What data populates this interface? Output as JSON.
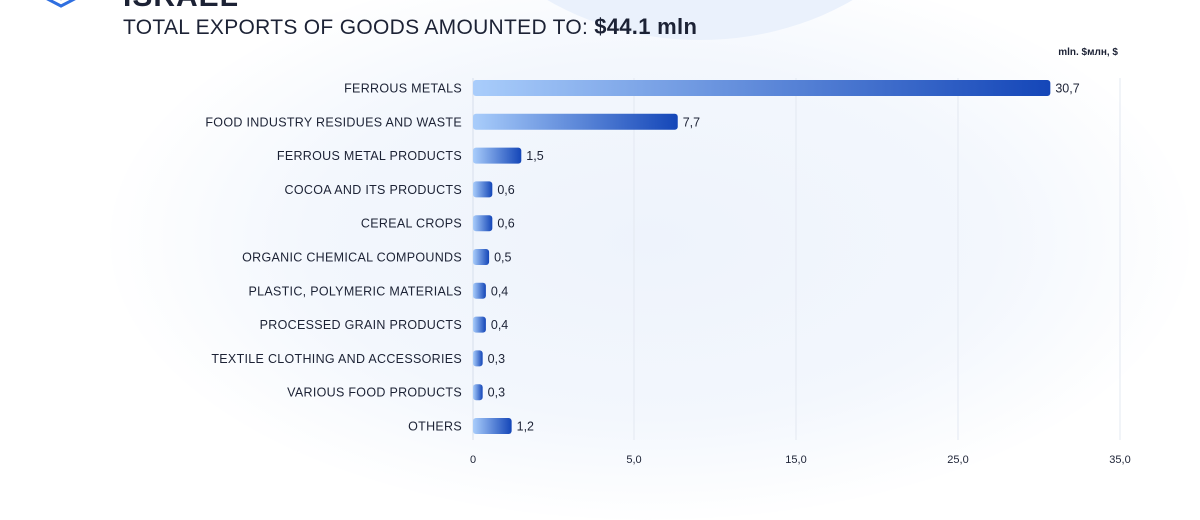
{
  "header": {
    "country": "ISRAEL",
    "headline_prefix": "TOTAL EXPORTS OF GOODS AMOUNTED TO:",
    "headline_total": "$44.1 mln",
    "unit_label": "mln. $млн, $"
  },
  "chart_data": {
    "type": "bar",
    "orientation": "horizontal",
    "categories": [
      "FERROUS METALS",
      "FOOD INDUSTRY RESIDUES AND WASTE",
      "FERROUS METAL PRODUCTS",
      "COCOA AND ITS PRODUCTS",
      "CEREAL CROPS",
      "ORGANIC CHEMICAL COMPOUNDS",
      "PLASTIC, POLYMERIC MATERIALS",
      "PROCESSED GRAIN PRODUCTS",
      "TEXTILE CLOTHING AND ACCESSORIES",
      "VARIOUS FOOD PRODUCTS",
      "OTHERS"
    ],
    "values": [
      30.7,
      7.7,
      1.5,
      0.6,
      0.6,
      0.5,
      0.4,
      0.4,
      0.3,
      0.3,
      1.2
    ],
    "value_labels": [
      "30,7",
      "7,7",
      "1,5",
      "0,6",
      "0,6",
      "0,5",
      "0,4",
      "0,4",
      "0,3",
      "0,3",
      "1,2"
    ],
    "xticks": [
      0,
      5,
      15,
      25,
      35
    ],
    "xtick_labels": [
      "0",
      "5,0",
      "15,0",
      "25,0",
      "35,0"
    ],
    "xlim": [
      0,
      35
    ],
    "grid": true,
    "bar_color_start": "#a9cdfb",
    "bar_color_end": "#1446b8",
    "axis_scale": "piecewise"
  }
}
